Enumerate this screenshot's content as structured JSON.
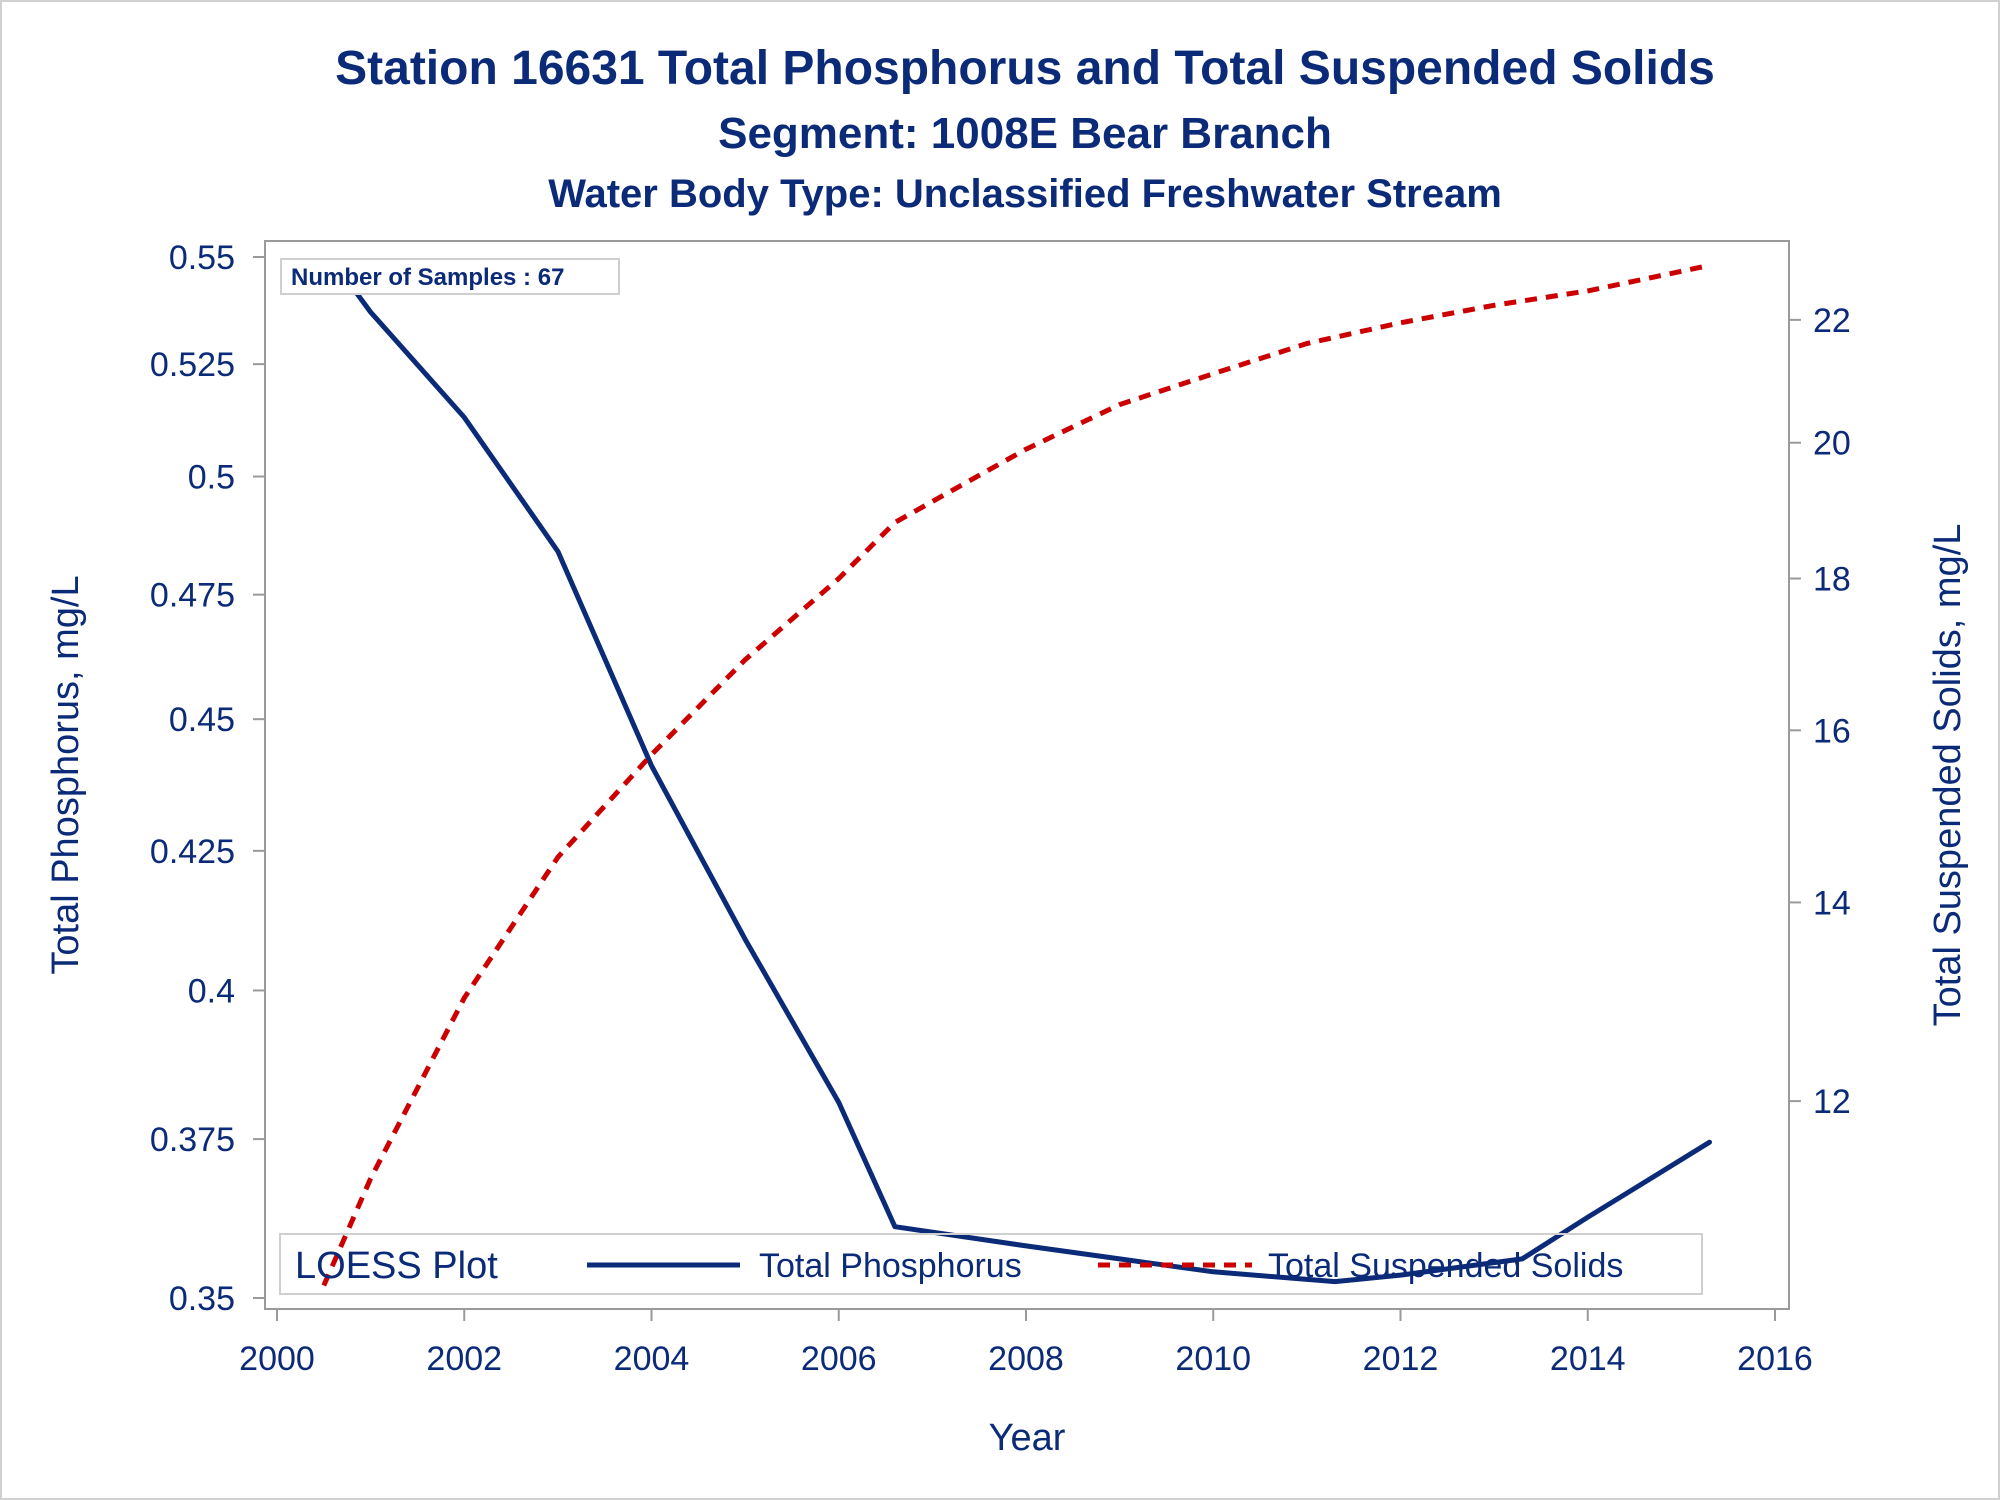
{
  "colors": {
    "text": "#0B2A78",
    "phosphorus": "#0B2A78",
    "tss": "#CC0000",
    "frame": "#9a9a9a",
    "legend_border": "#cfcfcf"
  },
  "chart_data": {
    "type": "line",
    "title": "Station 16631  Total Phosphorus and Total Suspended Solids",
    "subtitle": "Segment: 1008E  Bear Branch",
    "subtitle2": "Water Body Type: Unclassified Freshwater Stream",
    "xlabel": "Year",
    "ylabel": "Total Phosphorus, mg/L",
    "y2label": "Total Suspended Solids, mg/L",
    "xlim": [
      2000,
      2016
    ],
    "ylim": [
      0.35,
      0.55
    ],
    "y2lim": [
      10.3,
      23.1
    ],
    "xticks": [
      2000,
      2002,
      2004,
      2006,
      2008,
      2010,
      2012,
      2014,
      2016
    ],
    "yticks": [
      0.35,
      0.375,
      0.4,
      0.425,
      0.45,
      0.475,
      0.5,
      0.525,
      0.55
    ],
    "ytick_labels": [
      "0.35",
      "0.375",
      "0.4",
      "0.425",
      "0.45",
      "0.475",
      "0.5",
      "0.525",
      "0.55"
    ],
    "y2ticks": [
      12,
      14,
      16,
      18,
      20,
      22
    ],
    "y_scale": "log",
    "y2_scale": "log",
    "grid": false,
    "annotation": "Number of Samples : 67",
    "legend": {
      "title": "LOESS Plot",
      "placement": "bottom-inside"
    },
    "series": [
      {
        "name": "Total Phosphorus",
        "axis": "left",
        "style": "solid",
        "x": [
          2000.6,
          2001,
          2002,
          2003,
          2004,
          2005,
          2006,
          2006.6,
          2008,
          2009,
          2010,
          2011.3,
          2012,
          2013.3,
          2014,
          2015.3
        ],
        "y": [
          0.549,
          0.537,
          0.513,
          0.484,
          0.441,
          0.409,
          0.381,
          0.361,
          0.358,
          0.356,
          0.354,
          0.3525,
          0.3535,
          0.356,
          0.3625,
          0.3745
        ]
      },
      {
        "name": "Total Suspended Solids",
        "axis": "right",
        "style": "dashed",
        "x": [
          2000.5,
          2001,
          2002,
          2003,
          2004,
          2005,
          2006,
          2006.6,
          2008,
          2009,
          2010,
          2011,
          2012,
          2013,
          2014,
          2015.3
        ],
        "y": [
          10.4,
          11.3,
          13.0,
          14.5,
          15.7,
          16.9,
          18.0,
          18.8,
          19.9,
          20.6,
          21.1,
          21.6,
          21.95,
          22.25,
          22.5,
          22.95
        ]
      }
    ]
  }
}
